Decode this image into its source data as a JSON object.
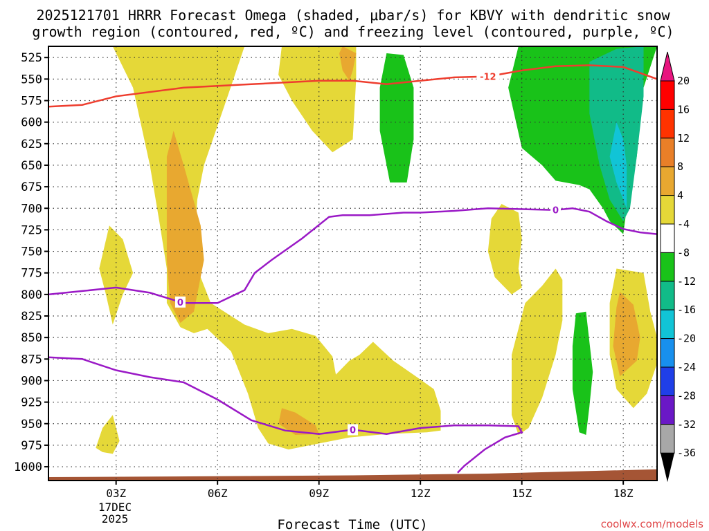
{
  "chart_data": {
    "type": "time-height",
    "title_line1": "2025121701 HRRR Forecast Omega (shaded, μbar/s) for KBVY with dendritic snow",
    "title_line2": "growth region (contoured, red, ºC) and freezing level (contoured, purple, ºC)",
    "xlabel": "Forecast Time (UTC)",
    "date_label": [
      "17DEC",
      "2025"
    ],
    "credit": "coolwx.com/models",
    "x_range_hours": [
      1,
      19
    ],
    "x_ticks": [
      {
        "label": "03Z",
        "hour": 3
      },
      {
        "label": "06Z",
        "hour": 6
      },
      {
        "label": "09Z",
        "hour": 9
      },
      {
        "label": "12Z",
        "hour": 12
      },
      {
        "label": "15Z",
        "hour": 15
      },
      {
        "label": "18Z",
        "hour": 18
      }
    ],
    "y_ticks_hpa": [
      525,
      550,
      575,
      600,
      625,
      650,
      675,
      700,
      725,
      750,
      775,
      800,
      825,
      850,
      875,
      900,
      925,
      950,
      975,
      1000
    ],
    "y_range_hpa": [
      512,
      1016
    ],
    "grid": "dotted",
    "colorbar": {
      "labels": [
        "20",
        "16",
        "12",
        "8",
        "4",
        "-4",
        "-8",
        "-12",
        "-16",
        "-20",
        "-24",
        "-28",
        "-32",
        "-36"
      ],
      "colors": [
        "#ff0000",
        "#ff3300",
        "#e97f28",
        "#e8a830",
        "#e5d838",
        "#ffffff",
        "#19c219",
        "#11bb88",
        "#11c4d6",
        "#1890ee",
        "#1f3fe8",
        "#6a18c6",
        "#9a19c6",
        "#a8a8a8"
      ],
      "top_arrow_color": "#e8157f",
      "bottom_arrow_color": "#000000"
    },
    "omega_regions": [
      {
        "level": "4 to 8",
        "color": "#e5d838",
        "polygon": [
          [
            2.9,
            512
          ],
          [
            6.8,
            512
          ],
          [
            6.3,
            570
          ],
          [
            5.6,
            650
          ],
          [
            5.4,
            690
          ],
          [
            5.3,
            760
          ],
          [
            5.8,
            810
          ],
          [
            6.8,
            835
          ],
          [
            7.5,
            845
          ],
          [
            8.2,
            840
          ],
          [
            8.9,
            848
          ],
          [
            9.4,
            872
          ],
          [
            9.5,
            893
          ],
          [
            9.9,
            877
          ],
          [
            10.2,
            870
          ],
          [
            10.6,
            855
          ],
          [
            11.2,
            877
          ],
          [
            11.9,
            896
          ],
          [
            12.4,
            910
          ],
          [
            12.6,
            935
          ],
          [
            12.6,
            958
          ],
          [
            12.2,
            960
          ],
          [
            11,
            962
          ],
          [
            9.9,
            966
          ],
          [
            8.1,
            980
          ],
          [
            7.5,
            973
          ],
          [
            7.2,
            955
          ],
          [
            6.9,
            915
          ],
          [
            6.4,
            866
          ],
          [
            5.7,
            840
          ],
          [
            5.3,
            845
          ],
          [
            4.9,
            838
          ],
          [
            4.5,
            810
          ],
          [
            4.5,
            770
          ],
          [
            4.3,
            720
          ],
          [
            4.0,
            650
          ],
          [
            3.5,
            560
          ]
        ]
      },
      {
        "level": "4 to 8",
        "color": "#e5d838",
        "polygon": [
          [
            7.9,
            512
          ],
          [
            8.8,
            512
          ],
          [
            10.1,
            512
          ],
          [
            10.1,
            550
          ],
          [
            10.0,
            620
          ],
          [
            9.4,
            635
          ],
          [
            8.8,
            610
          ],
          [
            8.2,
            575
          ],
          [
            7.8,
            545
          ]
        ]
      },
      {
        "level": "4 to 8",
        "color": "#e5d838",
        "polygon": [
          [
            2.8,
            720
          ],
          [
            3.2,
            736
          ],
          [
            3.5,
            775
          ],
          [
            3.2,
            800
          ],
          [
            2.9,
            835
          ],
          [
            2.7,
            800
          ],
          [
            2.5,
            770
          ]
        ]
      },
      {
        "level": "4 to 8",
        "color": "#e5d838",
        "polygon": [
          [
            2.6,
            955
          ],
          [
            2.9,
            940
          ],
          [
            3.1,
            970
          ],
          [
            2.9,
            985
          ],
          [
            2.6,
            983
          ],
          [
            2.4,
            978
          ]
        ]
      },
      {
        "level": "4 to 8",
        "color": "#e5d838",
        "polygon": [
          [
            14.4,
            695
          ],
          [
            14.9,
            705
          ],
          [
            15.0,
            735
          ],
          [
            14.9,
            770
          ],
          [
            15.0,
            792
          ],
          [
            14.7,
            800
          ],
          [
            14.2,
            780
          ],
          [
            14.0,
            750
          ],
          [
            14.1,
            712
          ]
        ]
      },
      {
        "level": "4 to 8",
        "color": "#e5d838",
        "polygon": [
          [
            16.0,
            770
          ],
          [
            16.2,
            783
          ],
          [
            16.2,
            830
          ],
          [
            16.0,
            870
          ],
          [
            15.6,
            920
          ],
          [
            15.2,
            955
          ],
          [
            14.9,
            963
          ],
          [
            14.7,
            940
          ],
          [
            14.7,
            870
          ],
          [
            15.1,
            810
          ],
          [
            15.6,
            790
          ]
        ]
      },
      {
        "level": "4 to 8",
        "color": "#e5d838",
        "polygon": [
          [
            17.8,
            770
          ],
          [
            18.6,
            775
          ],
          [
            18.8,
            820
          ],
          [
            19.0,
            850
          ],
          [
            19.0,
            880
          ],
          [
            18.7,
            915
          ],
          [
            18.3,
            932
          ],
          [
            17.8,
            910
          ],
          [
            17.6,
            870
          ],
          [
            17.6,
            810
          ]
        ]
      },
      {
        "level": "8 to 12",
        "color": "#e8a830",
        "polygon": [
          [
            4.7,
            610
          ],
          [
            5.0,
            650
          ],
          [
            5.5,
            720
          ],
          [
            5.6,
            760
          ],
          [
            5.3,
            820
          ],
          [
            4.9,
            833
          ],
          [
            4.6,
            810
          ],
          [
            4.5,
            760
          ],
          [
            4.5,
            690
          ],
          [
            4.5,
            640
          ]
        ]
      },
      {
        "level": "8 to 12",
        "color": "#e8a830",
        "polygon": [
          [
            9.7,
            512
          ],
          [
            10.1,
            520
          ],
          [
            10.0,
            540
          ],
          [
            9.9,
            552
          ],
          [
            9.7,
            540
          ],
          [
            9.6,
            520
          ]
        ]
      },
      {
        "level": "8 to 12",
        "color": "#e8a830",
        "polygon": [
          [
            7.9,
            932
          ],
          [
            8.3,
            937
          ],
          [
            8.9,
            952
          ],
          [
            9.0,
            962
          ],
          [
            8.3,
            963
          ],
          [
            7.8,
            950
          ]
        ]
      },
      {
        "level": "8 to 12",
        "color": "#e8a830",
        "polygon": [
          [
            17.9,
            797
          ],
          [
            18.3,
            812
          ],
          [
            18.5,
            850
          ],
          [
            18.4,
            877
          ],
          [
            17.9,
            895
          ],
          [
            17.7,
            860
          ],
          [
            17.8,
            815
          ]
        ]
      },
      {
        "level": "-8 to -4",
        "color": "#19c219",
        "polygon": [
          [
            11.0,
            520
          ],
          [
            11.5,
            522
          ],
          [
            11.8,
            560
          ],
          [
            11.8,
            620
          ],
          [
            11.6,
            670
          ],
          [
            11.1,
            670
          ],
          [
            10.8,
            610
          ],
          [
            10.8,
            560
          ]
        ]
      },
      {
        "level": "-8 to -4",
        "color": "#19c219",
        "polygon": [
          [
            16.6,
            822
          ],
          [
            16.9,
            820
          ],
          [
            17.1,
            890
          ],
          [
            17.0,
            930
          ],
          [
            16.9,
            963
          ],
          [
            16.7,
            960
          ],
          [
            16.5,
            910
          ],
          [
            16.5,
            860
          ]
        ]
      },
      {
        "level": "-8 to -4",
        "color": "#19c219",
        "polygon": [
          [
            15.5,
            512
          ],
          [
            19.0,
            512
          ],
          [
            18.6,
            560
          ],
          [
            18.4,
            640
          ],
          [
            18.1,
            700
          ],
          [
            18.0,
            730
          ],
          [
            17.6,
            715
          ],
          [
            17.4,
            700
          ],
          [
            17.0,
            678
          ],
          [
            16.7,
            673
          ],
          [
            16.0,
            668
          ],
          [
            15.6,
            650
          ],
          [
            15.0,
            630
          ],
          [
            14.6,
            560
          ],
          [
            14.9,
            512
          ]
        ]
      },
      {
        "level": "-12 to -8",
        "color": "#11bb88",
        "polygon": [
          [
            17.0,
            530
          ],
          [
            17.8,
            515
          ],
          [
            18.6,
            512
          ],
          [
            18.6,
            570
          ],
          [
            18.4,
            640
          ],
          [
            18.2,
            700
          ],
          [
            18.0,
            715
          ],
          [
            17.6,
            690
          ],
          [
            17.3,
            650
          ],
          [
            17.0,
            590
          ]
        ]
      },
      {
        "level": "-16 to -12",
        "color": "#11c4d6",
        "polygon": [
          [
            18.0,
            620
          ],
          [
            18.1,
            650
          ],
          [
            18.1,
            700
          ],
          [
            17.8,
            670
          ],
          [
            17.6,
            640
          ],
          [
            17.8,
            600
          ]
        ]
      }
    ],
    "dgz_minus12_contour": {
      "color": "#ee3d2e",
      "label": "-12",
      "points": [
        [
          1,
          582
        ],
        [
          2,
          580
        ],
        [
          3,
          570
        ],
        [
          5,
          560
        ],
        [
          7,
          556
        ],
        [
          8,
          554
        ],
        [
          9,
          552
        ],
        [
          10,
          552
        ],
        [
          11,
          556
        ],
        [
          12,
          552
        ],
        [
          13,
          548
        ],
        [
          14,
          547
        ],
        [
          15,
          540
        ],
        [
          16,
          535
        ],
        [
          17,
          534
        ],
        [
          18,
          536
        ],
        [
          19,
          550
        ]
      ]
    },
    "freezing_level_contours": [
      {
        "color": "#9a19c6",
        "label": "0",
        "points": [
          [
            1,
            800
          ],
          [
            2,
            796
          ],
          [
            3,
            792
          ],
          [
            4,
            798
          ],
          [
            5,
            810
          ],
          [
            6,
            810
          ],
          [
            6.8,
            795
          ],
          [
            7.1,
            775
          ],
          [
            7.6,
            760
          ],
          [
            8.5,
            735
          ],
          [
            9.3,
            710
          ],
          [
            9.7,
            708
          ],
          [
            10.5,
            708
          ],
          [
            11.5,
            705
          ],
          [
            12,
            705
          ],
          [
            13,
            703
          ],
          [
            14,
            700
          ],
          [
            15,
            701
          ],
          [
            16,
            702
          ],
          [
            16.5,
            700
          ],
          [
            17,
            704
          ],
          [
            17.5,
            715
          ],
          [
            18,
            724
          ],
          [
            18.5,
            728
          ],
          [
            19,
            730
          ]
        ]
      },
      {
        "color": "#9a19c6",
        "label": "0",
        "points": [
          [
            1,
            873
          ],
          [
            2,
            875
          ],
          [
            3,
            888
          ],
          [
            4,
            896
          ],
          [
            5,
            902
          ],
          [
            6,
            922
          ],
          [
            7,
            946
          ],
          [
            8,
            958
          ],
          [
            9,
            962
          ],
          [
            10,
            957
          ],
          [
            11,
            962
          ],
          [
            12,
            955
          ],
          [
            13,
            952
          ],
          [
            14,
            952
          ],
          [
            14.9,
            953
          ],
          [
            15.0,
            960
          ],
          [
            14.5,
            966
          ],
          [
            13.9,
            980
          ],
          [
            13.3,
            999
          ],
          [
            13.1,
            1007
          ]
        ]
      }
    ],
    "terrain": {
      "color": "#a55535",
      "surface_hpa": [
        [
          1,
          1012
        ],
        [
          6,
          1011
        ],
        [
          10,
          1010
        ],
        [
          14,
          1008
        ],
        [
          17,
          1005
        ],
        [
          19,
          1003
        ]
      ]
    }
  }
}
